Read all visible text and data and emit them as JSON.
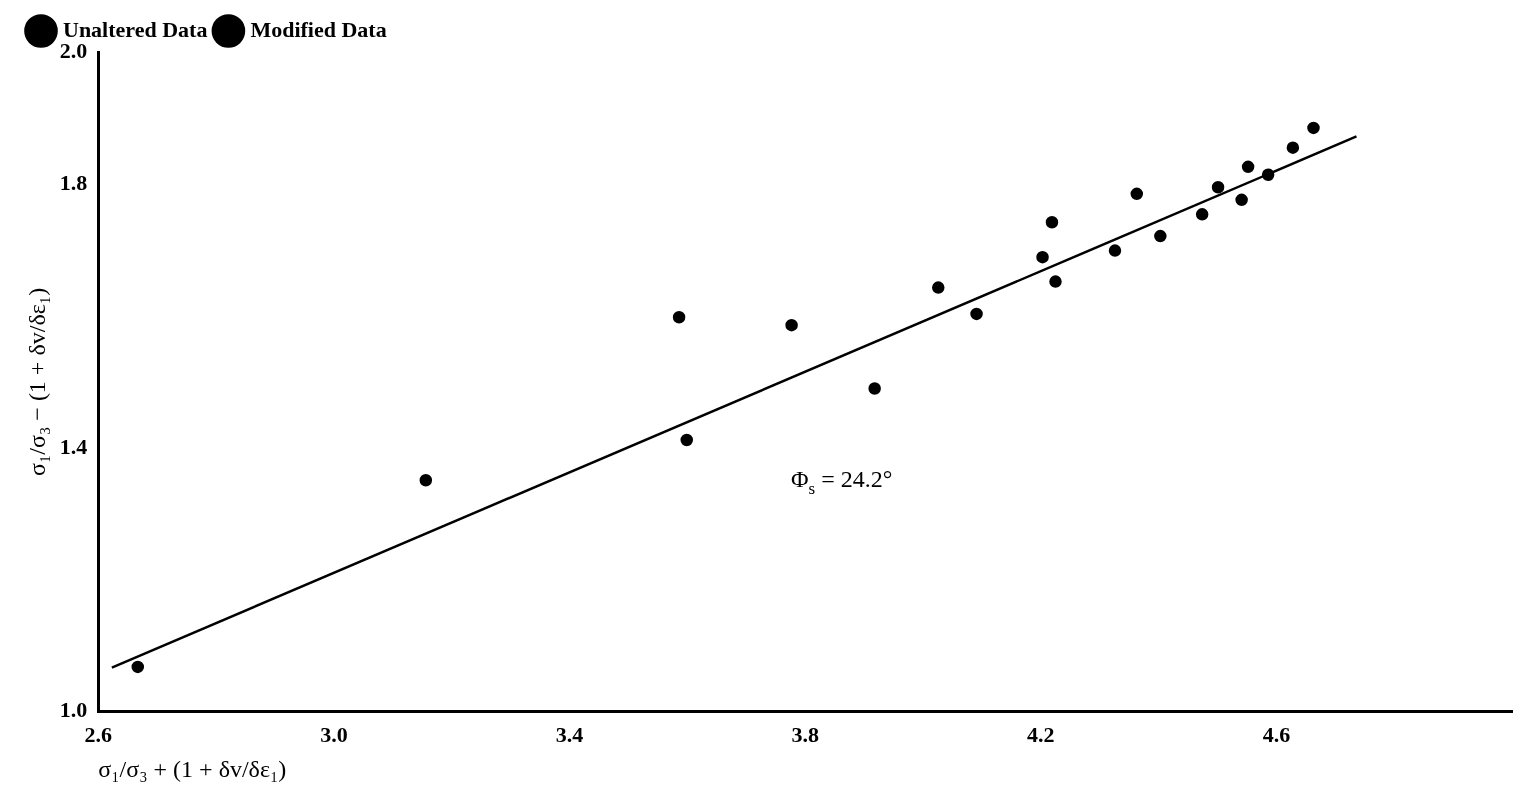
{
  "chart_data": {
    "type": "scatter",
    "xlabel": "σ₁/σ₃ + (1 + δv/δε₁)",
    "ylabel": "σ₁/σ₃ − (1 + δv/δε₁)",
    "xlim": [
      2.6,
      5.0
    ],
    "xticks": [
      {
        "value": 2.6,
        "label": "2.6"
      },
      {
        "value": 3.0,
        "label": "3.0"
      },
      {
        "value": 3.4,
        "label": "3.4"
      },
      {
        "value": 3.8,
        "label": "3.8"
      },
      {
        "value": 4.2,
        "label": "4.2"
      },
      {
        "value": 4.6,
        "label": "4.6"
      }
    ],
    "ylim": [
      1.0,
      2.0
    ],
    "yticks": [
      {
        "value": 1.0,
        "label": "1.0"
      },
      {
        "value": 1.4,
        "label": "1.4"
      },
      {
        "value": 1.8,
        "label": "1.8"
      },
      {
        "value": 2.0,
        "label": "2.0"
      }
    ],
    "grid": false,
    "legend": "top left",
    "marker": "circle",
    "series": [
      {
        "name": "Unaltered Data",
        "color": "#000000",
        "x": [
          3.586,
          3.777,
          4.026,
          4.203,
          4.326,
          4.403,
          4.501,
          4.552,
          4.663
        ],
        "values": [
          1.598,
          1.586,
          1.643,
          1.689,
          1.699,
          1.721,
          1.795,
          1.826,
          1.885
        ]
      },
      {
        "name": "Modified Data",
        "color": "#000000",
        "x": [
          2.667,
          3.156,
          3.599,
          3.918,
          4.091,
          4.219,
          4.225,
          4.363,
          4.474,
          4.541,
          4.586,
          4.628
        ],
        "values": [
          1.068,
          1.351,
          1.412,
          1.49,
          1.603,
          1.742,
          1.652,
          1.785,
          1.754,
          1.776,
          1.814,
          1.855
        ]
      },
      {
        "type": "line",
        "color": "#000000",
        "marker": "none",
        "line_style": "solid",
        "x": [
          2.623,
          4.736
        ],
        "values": [
          1.067,
          1.872
        ]
      }
    ],
    "annotations": [
      "Φ$_{s}$ = 24.2°"
    ]
  }
}
